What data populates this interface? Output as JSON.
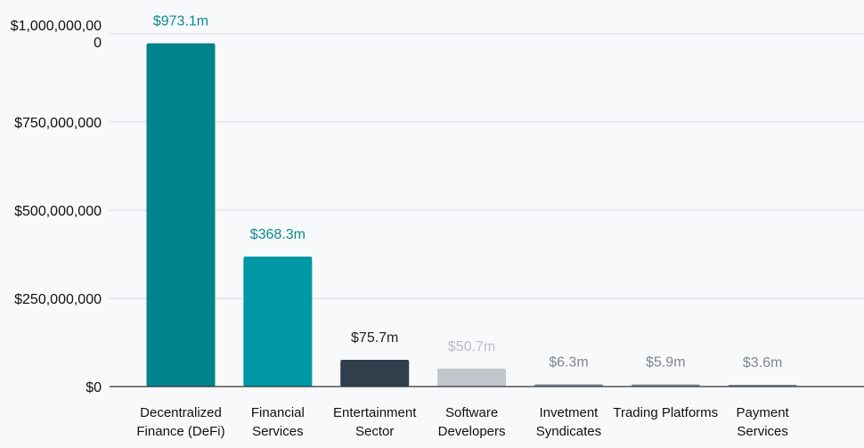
{
  "chart_data": {
    "type": "bar",
    "title": "",
    "xlabel": "",
    "ylabel": "",
    "categories": [
      [
        "Decentralized",
        "Finance (DeFi)"
      ],
      [
        "Financial",
        "Services"
      ],
      [
        "Entertainment",
        "Sector"
      ],
      [
        "Software",
        "Developers"
      ],
      [
        "Invetment",
        "Syndicates"
      ],
      [
        "Trading Platforms"
      ],
      [
        "Payment",
        "Services"
      ]
    ],
    "values": [
      973100000,
      368300000,
      75700000,
      50700000,
      6300000,
      5900000,
      3600000
    ],
    "value_labels": [
      "$973.1m",
      "$368.3m",
      "$75.7m",
      "$50.7m",
      "$6.3m",
      "$5.9m",
      "$3.6m"
    ],
    "bar_colors": [
      "#00838a",
      "#0098a4",
      "#2f3f4c",
      "#c0c6cc",
      "#7f8f9c",
      "#7f8f9c",
      "#7f8f9c"
    ],
    "label_colors": [
      "#0b8a8f",
      "#0b8a8f",
      "#222222",
      "#b9bec4",
      "#7d8790",
      "#7d8790",
      "#7d8790"
    ],
    "ylim": [
      0,
      1000000000
    ],
    "yticks": [
      0,
      250000000,
      500000000,
      750000000,
      1000000000
    ],
    "ytick_labels": [
      [
        "$0"
      ],
      [
        "$250,000,000"
      ],
      [
        "$500,000,000"
      ],
      [
        "$750,000,000"
      ],
      [
        "$1,000,000,00",
        "0"
      ]
    ],
    "grid": true
  }
}
